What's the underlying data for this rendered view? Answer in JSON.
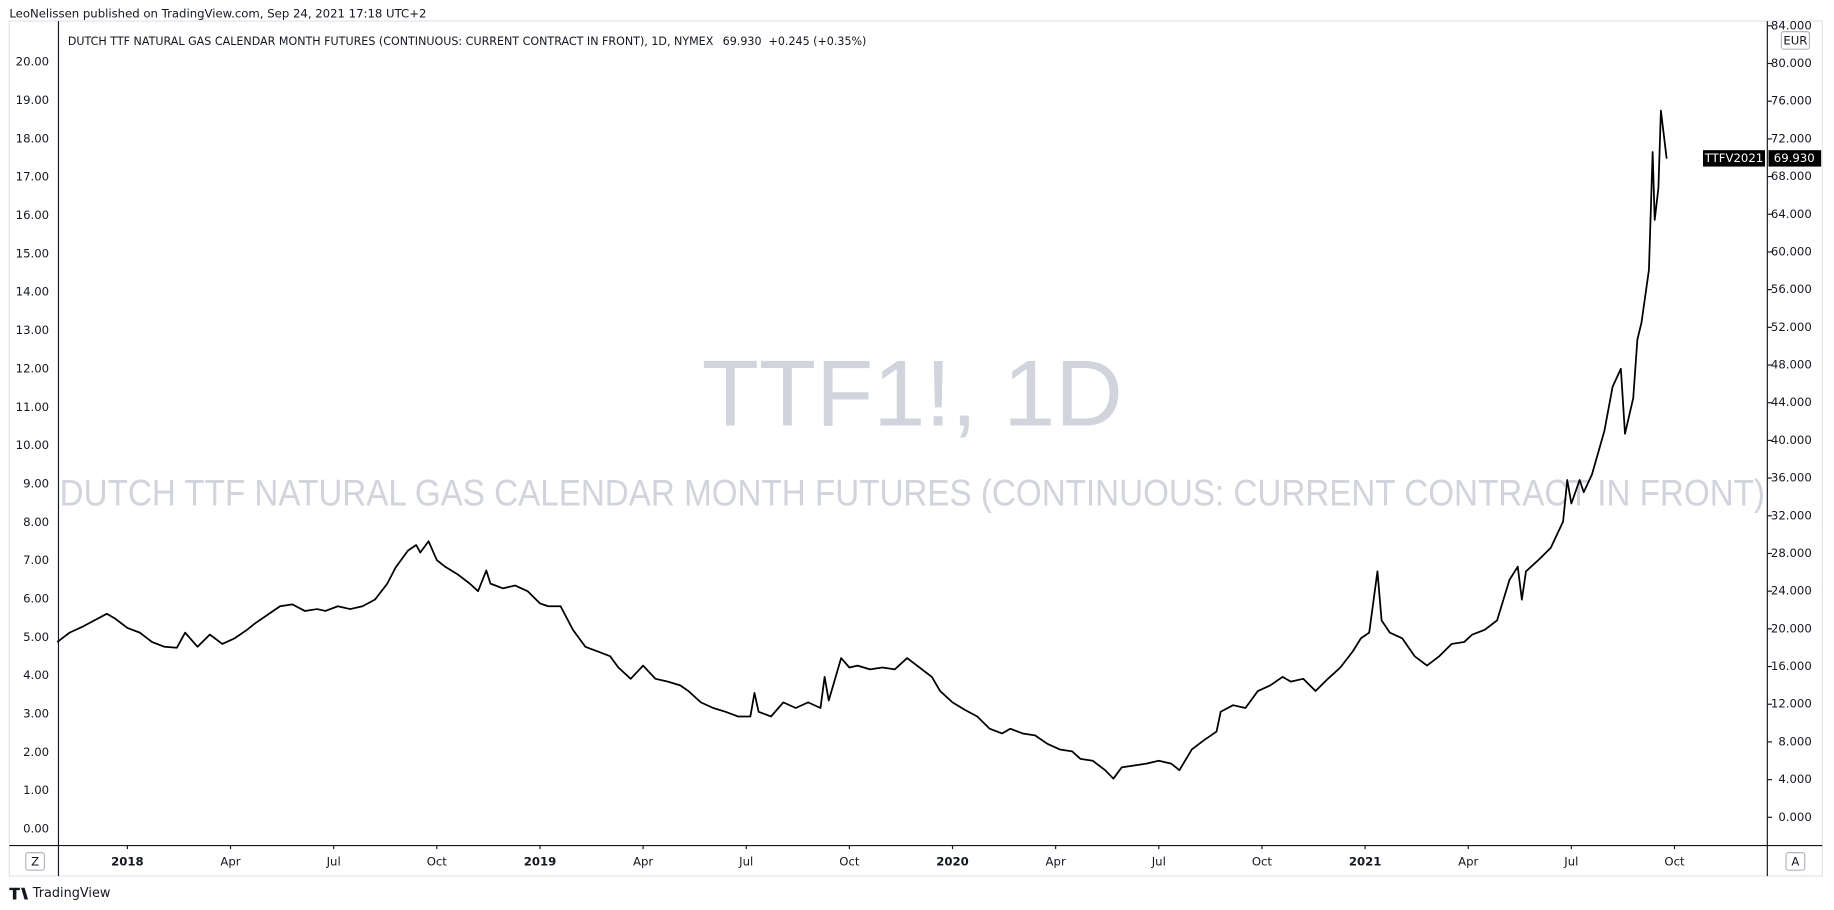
{
  "header": {
    "published": "LeoNelissen published on TradingView.com, Sep 24, 2021 17:18 UTC+2"
  },
  "chart_data": {
    "type": "line",
    "title": "DUTCH TTF NATURAL GAS CALENDAR MONTH FUTURES (CONTINUOUS: CURRENT CONTRACT IN FRONT), 1D, NYMEX",
    "last_price": "69.930",
    "change": "+0.245 (+0.35%)",
    "watermark": "TTF1!, 1D",
    "watermark_subtitle": "DUTCH TTF NATURAL GAS CALENDAR MONTH FUTURES (CONTINUOUS: CURRENT CONTRACT IN FRONT)",
    "currency": "EUR",
    "x": [
      2017.83,
      2017.86,
      2017.89,
      2017.92,
      2017.95,
      2017.97,
      2018.0,
      2018.03,
      2018.06,
      2018.09,
      2018.12,
      2018.14,
      2018.17,
      2018.2,
      2018.23,
      2018.26,
      2018.29,
      2018.31,
      2018.34,
      2018.37,
      2018.4,
      2018.43,
      2018.46,
      2018.48,
      2018.51,
      2018.54,
      2018.57,
      2018.6,
      2018.63,
      2018.65,
      2018.68,
      2018.7,
      2018.71,
      2018.73,
      2018.75,
      2018.77,
      2018.8,
      2018.83,
      2018.85,
      2018.87,
      2018.88,
      2018.91,
      2018.94,
      2018.97,
      2019.0,
      2019.02,
      2019.05,
      2019.08,
      2019.11,
      2019.14,
      2019.17,
      2019.19,
      2019.22,
      2019.25,
      2019.28,
      2019.31,
      2019.34,
      2019.36,
      2019.39,
      2019.42,
      2019.45,
      2019.48,
      2019.51,
      2019.52,
      2019.53,
      2019.56,
      2019.59,
      2019.62,
      2019.65,
      2019.68,
      2019.69,
      2019.7,
      2019.73,
      2019.75,
      2019.77,
      2019.8,
      2019.83,
      2019.86,
      2019.89,
      2019.92,
      2019.95,
      2019.97,
      2020.0,
      2020.03,
      2020.06,
      2020.09,
      2020.12,
      2020.14,
      2020.17,
      2020.2,
      2020.23,
      2020.26,
      2020.29,
      2020.31,
      2020.34,
      2020.37,
      2020.39,
      2020.41,
      2020.44,
      2020.47,
      2020.5,
      2020.53,
      2020.55,
      2020.58,
      2020.61,
      2020.64,
      2020.65,
      2020.68,
      2020.71,
      2020.74,
      2020.77,
      2020.8,
      2020.82,
      2020.85,
      2020.88,
      2020.91,
      2020.94,
      2020.97,
      2020.99,
      2021.01,
      2021.03,
      2021.04,
      2021.06,
      2021.09,
      2021.12,
      2021.15,
      2021.18,
      2021.21,
      2021.24,
      2021.26,
      2021.29,
      2021.32,
      2021.35,
      2021.37,
      2021.38,
      2021.39,
      2021.42,
      2021.45,
      2021.48,
      2021.49,
      2021.5,
      2021.52,
      2021.53,
      2021.55,
      2021.58,
      2021.6,
      2021.62,
      2021.63,
      2021.65,
      2021.66,
      2021.67,
      2021.688,
      2021.697,
      2021.702,
      2021.711,
      2021.717,
      2021.731
    ],
    "series": [
      {
        "name": "TTFV2021",
        "color": "#000000",
        "values": [
          18.6,
          19.6,
          20.2,
          20.9,
          21.6,
          21.1,
          20.1,
          19.6,
          18.6,
          18.1,
          18.0,
          19.6,
          18.1,
          19.4,
          18.4,
          19.0,
          19.9,
          20.6,
          21.5,
          22.4,
          22.6,
          21.9,
          22.1,
          21.9,
          22.4,
          22.1,
          22.4,
          23.1,
          24.8,
          26.5,
          28.3,
          28.9,
          28.1,
          29.3,
          27.3,
          26.6,
          25.8,
          24.8,
          24.0,
          26.2,
          24.8,
          24.3,
          24.6,
          24.0,
          22.7,
          22.4,
          22.4,
          19.9,
          18.1,
          17.6,
          17.1,
          15.9,
          14.7,
          16.1,
          14.7,
          14.4,
          14.0,
          13.4,
          12.2,
          11.6,
          11.2,
          10.7,
          10.7,
          13.2,
          11.2,
          10.7,
          12.2,
          11.6,
          12.2,
          11.6,
          14.9,
          12.4,
          16.9,
          15.9,
          16.1,
          15.7,
          15.9,
          15.7,
          16.9,
          15.9,
          14.9,
          13.4,
          12.2,
          11.4,
          10.7,
          9.4,
          8.9,
          9.4,
          8.9,
          8.7,
          7.8,
          7.2,
          7.0,
          6.2,
          6.0,
          5.0,
          4.1,
          5.3,
          5.5,
          5.7,
          6.0,
          5.7,
          5.0,
          7.2,
          8.2,
          9.1,
          11.2,
          11.9,
          11.6,
          13.4,
          14.0,
          14.9,
          14.4,
          14.7,
          13.4,
          14.7,
          15.9,
          17.6,
          19.0,
          19.6,
          26.1,
          20.9,
          19.6,
          19.0,
          17.1,
          16.1,
          17.1,
          18.4,
          18.6,
          19.4,
          19.9,
          20.9,
          25.2,
          26.6,
          23.1,
          26.1,
          27.3,
          28.6,
          31.4,
          35.8,
          33.3,
          35.8,
          34.5,
          36.4,
          41.0,
          45.7,
          47.6,
          40.7,
          44.5,
          50.7,
          52.5,
          58.1,
          70.6,
          63.4,
          66.8,
          75.0,
          69.9
        ]
      }
    ],
    "price_label": {
      "value": 69.93,
      "label": "69.930"
    },
    "xlim": [
      2017.833,
      2021.975
    ],
    "xticks": [
      {
        "value": 2018,
        "label": "2018"
      },
      {
        "value": 2018.25,
        "label": "Apr"
      },
      {
        "value": 2018.5,
        "label": "Jul"
      },
      {
        "value": 2018.75,
        "label": "Oct"
      },
      {
        "value": 2019,
        "label": "2019"
      },
      {
        "value": 2019.25,
        "label": "Apr"
      },
      {
        "value": 2019.5,
        "label": "Jul"
      },
      {
        "value": 2019.75,
        "label": "Oct"
      },
      {
        "value": 2020,
        "label": "2020"
      },
      {
        "value": 2020.25,
        "label": "Apr"
      },
      {
        "value": 2020.5,
        "label": "Jul"
      },
      {
        "value": 2020.75,
        "label": "Oct"
      },
      {
        "value": 2021,
        "label": "2021"
      },
      {
        "value": 2021.25,
        "label": "Apr"
      },
      {
        "value": 2021.5,
        "label": "Jul"
      },
      {
        "value": 2021.75,
        "label": "Oct"
      }
    ],
    "ylim": [
      -3,
      84.5
    ],
    "yticks": [
      {
        "value": 0,
        "label": "0.000"
      },
      {
        "value": 4,
        "label": "4.000"
      },
      {
        "value": 8,
        "label": "8.000"
      },
      {
        "value": 12,
        "label": "12.000"
      },
      {
        "value": 16,
        "label": "16.000"
      },
      {
        "value": 20,
        "label": "20.000"
      },
      {
        "value": 24,
        "label": "24.000"
      },
      {
        "value": 28,
        "label": "28.000"
      },
      {
        "value": 32,
        "label": "32.000"
      },
      {
        "value": 36,
        "label": "36.000"
      },
      {
        "value": 40,
        "label": "40.000"
      },
      {
        "value": 44,
        "label": "44.000"
      },
      {
        "value": 48,
        "label": "48.000"
      },
      {
        "value": 52,
        "label": "52.000"
      },
      {
        "value": 56,
        "label": "56.000"
      },
      {
        "value": 60,
        "label": "60.000"
      },
      {
        "value": 64,
        "label": "64.000"
      },
      {
        "value": 68,
        "label": "68.000"
      },
      {
        "value": 72,
        "label": "72.000"
      },
      {
        "value": 76,
        "label": "76.000"
      },
      {
        "value": 80,
        "label": "80.000"
      },
      {
        "value": 84,
        "label": "84.000"
      }
    ],
    "y2lim": [
      -0.43,
      21.07
    ],
    "y2ticks": [
      {
        "value": 0,
        "label": "0.00"
      },
      {
        "value": 1,
        "label": "1.00"
      },
      {
        "value": 2,
        "label": "2.00"
      },
      {
        "value": 3,
        "label": "3.00"
      },
      {
        "value": 4,
        "label": "4.00"
      },
      {
        "value": 5,
        "label": "5.00"
      },
      {
        "value": 6,
        "label": "6.00"
      },
      {
        "value": 7,
        "label": "7.00"
      },
      {
        "value": 8,
        "label": "8.00"
      },
      {
        "value": 9,
        "label": "9.00"
      },
      {
        "value": 10,
        "label": "10.00"
      },
      {
        "value": 11,
        "label": "11.00"
      },
      {
        "value": 12,
        "label": "12.00"
      },
      {
        "value": 13,
        "label": "13.00"
      },
      {
        "value": 14,
        "label": "14.00"
      },
      {
        "value": 15,
        "label": "15.00"
      },
      {
        "value": 16,
        "label": "16.00"
      },
      {
        "value": 17,
        "label": "17.00"
      },
      {
        "value": 18,
        "label": "18.00"
      },
      {
        "value": 19,
        "label": "19.00"
      },
      {
        "value": 20,
        "label": "20.00"
      }
    ]
  },
  "controls": {
    "z": "Z",
    "a": "A"
  },
  "footer": {
    "brand": "TradingView"
  }
}
